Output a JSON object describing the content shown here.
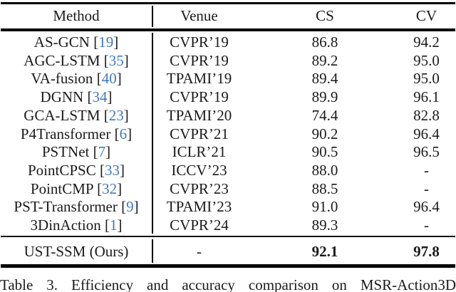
{
  "colors": {
    "citation_blue": "#4078c0",
    "text": "#1a1a1a",
    "rule_black": "#000000"
  },
  "table": {
    "header": {
      "method": "Method",
      "venue": "Venue",
      "cs": "CS",
      "cv": "CV"
    },
    "cite_brackets": [
      "[",
      "]"
    ],
    "rows": [
      {
        "method": "AS-GCN",
        "cite": "19",
        "venue": "CVPR’19",
        "cs": "86.8",
        "cv": "94.2"
      },
      {
        "method": "AGC-LSTM",
        "cite": "35",
        "venue": "CVPR’19",
        "cs": "89.2",
        "cv": "95.0"
      },
      {
        "method": "VA-fusion",
        "cite": "40",
        "venue": "TPAMI’19",
        "cs": "89.4",
        "cv": "95.0"
      },
      {
        "method": "DGNN",
        "cite": "34",
        "venue": "CVPR’19",
        "cs": "89.9",
        "cv": "96.1"
      },
      {
        "method": "GCA-LSTM",
        "cite": "23",
        "venue": "TPAMI’20",
        "cs": "74.4",
        "cv": "82.8"
      },
      {
        "method": "P4Transformer",
        "cite": "6",
        "venue": "CVPR’21",
        "cs": "90.2",
        "cv": "96.4"
      },
      {
        "method": "PSTNet",
        "cite": "7",
        "venue": "ICLR’21",
        "cs": "90.5",
        "cv": "96.5"
      },
      {
        "method": "PointCPSC",
        "cite": "33",
        "venue": "ICCV’23",
        "cs": "88.0",
        "cv": "-"
      },
      {
        "method": "PointCMP",
        "cite": "32",
        "venue": "CVPR’23",
        "cs": "88.5",
        "cv": "-"
      },
      {
        "method": "PST-Transformer",
        "cite": "9",
        "venue": "TPAMI’23",
        "cs": "91.0",
        "cv": "96.4"
      },
      {
        "method": "3DinAction",
        "cite": "1",
        "venue": "CVPR’24",
        "cs": "89.3",
        "cv": "-"
      }
    ],
    "ours_row": {
      "method": "UST-SSM (Ours)",
      "venue": "-",
      "cs": "92.1",
      "cv": "97.8"
    }
  },
  "caption": "Table 3. Efficiency and accuracy comparison on MSR-Action3D"
}
